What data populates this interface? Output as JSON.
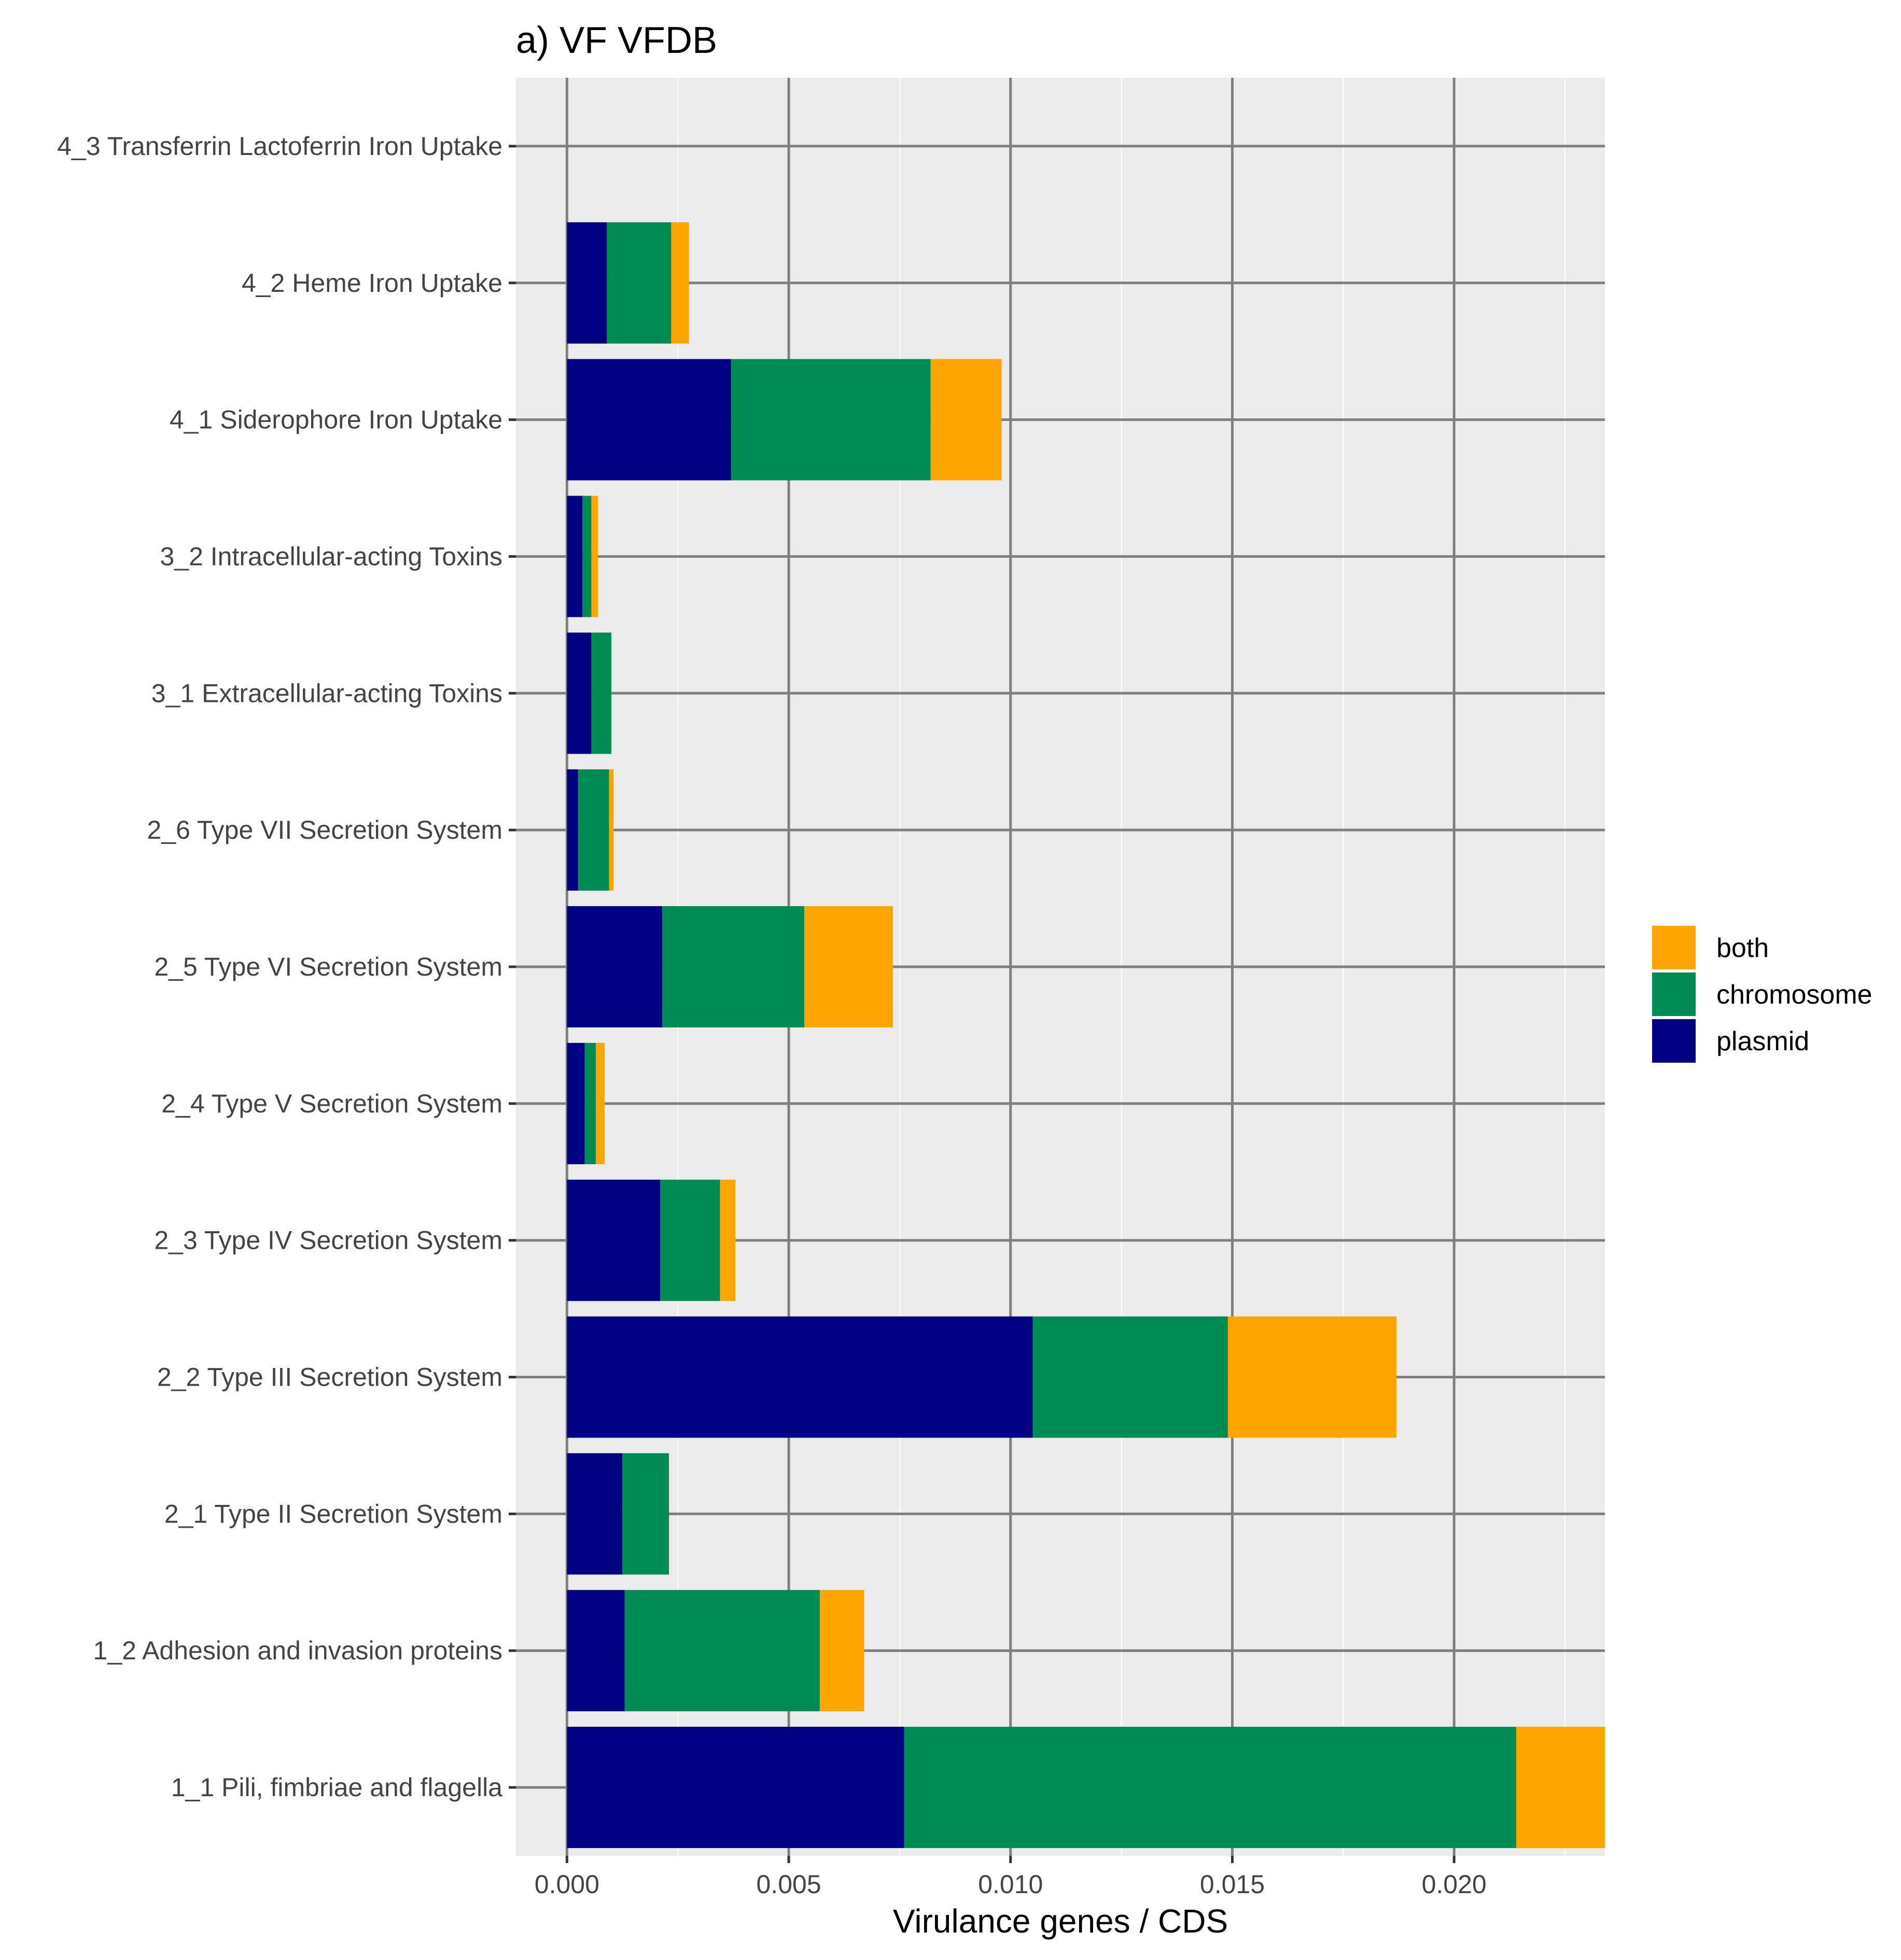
{
  "chart_data": {
    "type": "bar",
    "orientation": "horizontal",
    "stacked": true,
    "title": "a) VF VFDB",
    "xlabel": "Virulance genes / CDS",
    "ylabel": "",
    "xlim": [
      -0.00115,
      0.0234
    ],
    "xticks": [
      0.0,
      0.005,
      0.01,
      0.015,
      0.02
    ],
    "xtick_labels": [
      "0.000",
      "0.005",
      "0.010",
      "0.015",
      "0.020"
    ],
    "grid": true,
    "legend_position": "right",
    "categories": [
      "4_3 Transferrin Lactoferrin Iron Uptake",
      "4_2 Heme Iron Uptake",
      "4_1 Siderophore Iron Uptake",
      "3_2 Intracellular-acting Toxins",
      "3_1 Extracellular-acting Toxins",
      "2_6 Type VII Secretion System",
      "2_5 Type VI Secretion System",
      "2_4 Type V Secretion System",
      "2_3 Type IV Secretion System",
      "2_2 Type III Secretion System",
      "2_1 Type II Secretion System",
      "1_2 Adhesion and invasion proteins",
      "1_1 Pili, fimbriae and flagella"
    ],
    "series": [
      {
        "name": "plasmid",
        "color": "#000080",
        "values": [
          0.0,
          0.0009,
          0.0037,
          0.00035,
          0.00055,
          0.00025,
          0.00215,
          0.0004,
          0.0021,
          0.0105,
          0.00125,
          0.0013,
          0.0076
        ]
      },
      {
        "name": "chromosome",
        "color": "#008B55",
        "values": [
          0.0,
          0.00145,
          0.0045,
          0.0002,
          0.00045,
          0.0007,
          0.0032,
          0.00025,
          0.00135,
          0.0044,
          0.00105,
          0.0044,
          0.0138
        ]
      },
      {
        "name": "both",
        "color": "#FFA500",
        "values": [
          0.0,
          0.0004,
          0.0016,
          0.00015,
          0.0,
          0.0001,
          0.002,
          0.0002,
          0.00035,
          0.0038,
          0.0,
          0.001,
          0.002
        ]
      }
    ],
    "legend": [
      {
        "name": "both",
        "color": "#FFA500"
      },
      {
        "name": "chromosome",
        "color": "#008B55"
      },
      {
        "name": "plasmid",
        "color": "#000080"
      }
    ]
  },
  "colors": {
    "panel_background": "#EBEBEB",
    "major_grid": "#7F7F7F",
    "minor_grid": "#FFFFFF"
  }
}
